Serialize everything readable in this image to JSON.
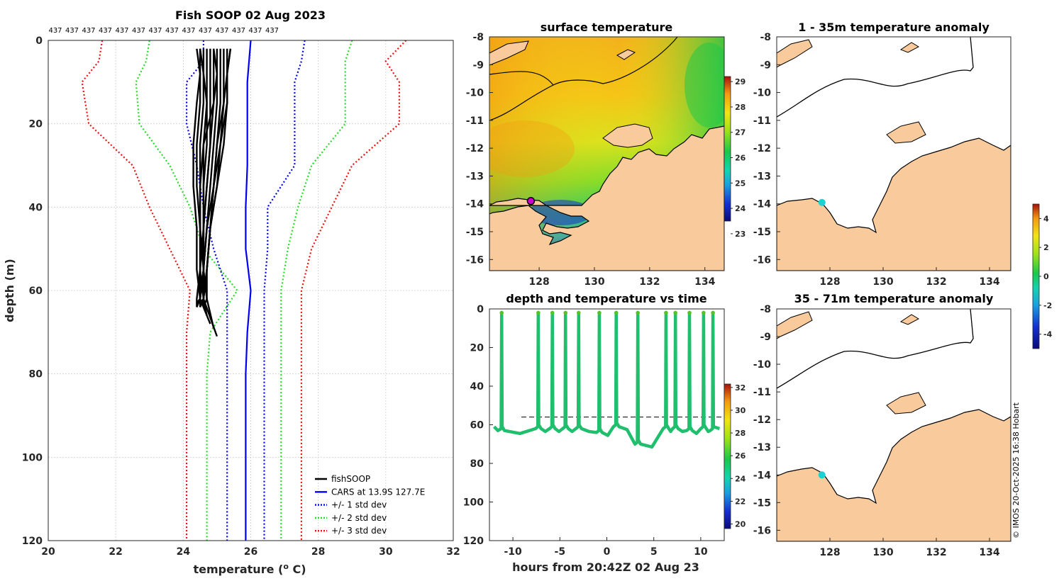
{
  "figure_title": "Fish SOOP 02 Aug 2023",
  "copyright": "© IMOS 20-Oct-2025 16:38 Hobart",
  "colors": {
    "fishsoop": "#000000",
    "cars": "#0000ee",
    "std1": "#0000ee",
    "std2": "#22dd22",
    "std3": "#ee1111",
    "land": "#f9cb9c",
    "trace": "#1fbf6e",
    "marker_cyan": "#19d3d3",
    "marker_magenta": "#cc00cc"
  },
  "chart_data": [
    {
      "type": "line",
      "name": "profile",
      "title": "Fish SOOP 02 Aug 2023",
      "top_labels": [
        "437",
        "437",
        "437",
        "437",
        "437",
        "437",
        "437",
        "437",
        "437",
        "437",
        "437",
        "437",
        "437",
        "437"
      ],
      "xlabel": "temperature",
      "xlabel_unit_sup": "o",
      "xlabel_unit_tail": " C)",
      "ylabel": "depth (m)",
      "xlim": [
        20,
        32
      ],
      "ylim": [
        0,
        120
      ],
      "xticks": [
        "20",
        "22",
        "24",
        "26",
        "28",
        "30",
        "32"
      ],
      "yticks": [
        "0",
        "20",
        "40",
        "60",
        "80",
        "100",
        "120"
      ],
      "legend": [
        {
          "label": "fishSOOP",
          "style": "solid",
          "color_key": "fishsoop"
        },
        {
          "label": "CARS at 13.9S 127.7E",
          "style": "solid",
          "color_key": "cars"
        },
        {
          "label": "+/- 1 std dev",
          "style": "dotted",
          "color_key": "std1"
        },
        {
          "label": "+/- 2 std dev",
          "style": "dotted",
          "color_key": "std2"
        },
        {
          "label": "+/- 3 std dev",
          "style": "dotted",
          "color_key": "std3"
        }
      ],
      "depths": [
        0,
        5,
        10,
        20,
        30,
        40,
        50,
        60,
        70,
        80,
        120
      ],
      "cars": [
        26.0,
        25.95,
        25.9,
        25.9,
        25.9,
        25.85,
        25.85,
        26.0,
        25.9,
        25.85,
        25.85
      ],
      "std1": {
        "lower": [
          24.6,
          24.6,
          24.1,
          24.1,
          24.4,
          24.6,
          24.9,
          25.3,
          25.3,
          25.3,
          25.3
        ],
        "upper": [
          27.6,
          27.5,
          27.3,
          27.3,
          27.3,
          26.5,
          26.5,
          26.4,
          26.4,
          26.4,
          26.4
        ]
      },
      "std2": {
        "lower": [
          23.0,
          22.9,
          22.6,
          22.7,
          23.6,
          24.2,
          24.6,
          25.6,
          24.8,
          24.7,
          24.7
        ],
        "upper": [
          29.0,
          28.8,
          28.8,
          28.8,
          27.8,
          27.4,
          27.1,
          26.9,
          26.9,
          26.9,
          26.9
        ]
      },
      "std3": {
        "lower": [
          21.6,
          21.5,
          21.0,
          21.2,
          22.5,
          23.0,
          23.6,
          24.2,
          24.1,
          24.1,
          24.1
        ],
        "upper": [
          30.6,
          30.0,
          30.4,
          30.4,
          29.0,
          28.4,
          27.8,
          27.5,
          27.5,
          27.5,
          27.5
        ]
      },
      "fishsoop_profiles": [
        {
          "t": [
            24.4,
            24.5,
            24.4,
            24.3,
            24.3,
            24.4,
            24.4,
            24.5,
            24.8
          ],
          "d": [
            2,
            8,
            15,
            25,
            35,
            45,
            55,
            62,
            68
          ]
        },
        {
          "t": [
            24.5,
            24.5,
            24.5,
            24.4,
            24.4,
            24.5,
            24.5,
            24.6,
            25.0
          ],
          "d": [
            2,
            8,
            15,
            25,
            35,
            45,
            55,
            62,
            71
          ]
        },
        {
          "t": [
            24.6,
            24.6,
            24.6,
            24.5,
            24.5,
            24.5,
            24.6,
            24.6,
            24.7
          ],
          "d": [
            2,
            8,
            15,
            25,
            35,
            45,
            55,
            62,
            66
          ]
        },
        {
          "t": [
            24.7,
            24.7,
            24.7,
            24.6,
            24.6,
            24.6,
            24.6,
            24.7,
            24.9
          ],
          "d": [
            2,
            8,
            15,
            25,
            35,
            45,
            55,
            62,
            69
          ]
        },
        {
          "t": [
            24.8,
            24.8,
            24.8,
            24.8,
            24.7,
            24.6,
            24.6,
            24.5,
            24.5
          ],
          "d": [
            2,
            8,
            15,
            25,
            35,
            45,
            55,
            62,
            64
          ]
        },
        {
          "t": [
            24.9,
            24.9,
            24.9,
            24.8,
            24.7,
            24.6,
            24.5,
            24.5,
            24.4
          ],
          "d": [
            2,
            8,
            15,
            25,
            35,
            45,
            55,
            62,
            64
          ]
        },
        {
          "t": [
            25.0,
            25.0,
            25.0,
            24.9,
            24.8,
            24.7,
            24.6,
            24.5,
            24.5
          ],
          "d": [
            2,
            8,
            15,
            25,
            35,
            45,
            55,
            62,
            63
          ]
        },
        {
          "t": [
            25.1,
            25.1,
            25.1,
            25.0,
            24.9,
            24.7,
            24.6,
            24.5,
            24.4
          ],
          "d": [
            2,
            8,
            15,
            25,
            35,
            45,
            55,
            62,
            63
          ]
        },
        {
          "t": [
            25.2,
            25.2,
            25.2,
            25.1,
            25.0,
            24.8,
            24.7,
            24.6,
            24.5
          ],
          "d": [
            2,
            8,
            15,
            25,
            35,
            45,
            55,
            62,
            64
          ]
        },
        {
          "t": [
            25.3,
            25.3,
            25.3,
            25.1,
            24.9,
            24.8,
            24.7,
            24.6,
            24.5
          ],
          "d": [
            2,
            8,
            15,
            25,
            35,
            45,
            55,
            62,
            63
          ]
        },
        {
          "t": [
            25.4,
            25.3,
            25.3,
            25.2,
            25.0,
            24.8,
            24.7,
            24.6,
            24.6
          ],
          "d": [
            2,
            8,
            15,
            25,
            35,
            45,
            55,
            62,
            64
          ]
        },
        {
          "t": [
            25.4,
            25.3,
            25.2,
            25.0,
            24.9,
            24.8,
            24.7,
            24.7,
            24.6
          ],
          "d": [
            2,
            8,
            15,
            25,
            35,
            45,
            55,
            62,
            64
          ]
        },
        {
          "t": [
            24.5,
            24.6,
            24.7,
            24.7,
            24.6,
            24.6,
            24.6,
            24.6,
            24.6
          ],
          "d": [
            2,
            8,
            15,
            25,
            35,
            45,
            55,
            62,
            64
          ]
        },
        {
          "t": [
            24.9,
            25.0,
            24.9,
            24.6,
            24.5,
            24.5,
            24.5,
            24.4,
            24.4
          ],
          "d": [
            2,
            8,
            15,
            25,
            35,
            45,
            55,
            62,
            64
          ]
        }
      ]
    },
    {
      "type": "heatmap",
      "name": "surface_temperature",
      "title": "surface temperature",
      "xlim": [
        126.2,
        134.7
      ],
      "ylim": [
        -16.4,
        -8.0
      ],
      "xticks": [
        "128",
        "130",
        "132",
        "134"
      ],
      "yticks": [
        "-8",
        "-9",
        "-10",
        "-11",
        "-12",
        "-13",
        "-14",
        "-15",
        "-16"
      ],
      "colorbar_ticks": [
        "23",
        "24",
        "25",
        "26",
        "27",
        "28",
        "29"
      ],
      "colorbar_range": [
        23.5,
        29.2
      ],
      "marker": {
        "lon": 127.7,
        "lat": -13.9
      }
    },
    {
      "type": "scatter",
      "name": "depth_vs_time",
      "title": "depth and temperature vs time",
      "xlabel": "hours from 20:42Z 02 Aug 23",
      "xlim": [
        -12.5,
        12.5
      ],
      "ylim": [
        0,
        120
      ],
      "xticks": [
        "-10",
        "-5",
        "0",
        "5",
        "10"
      ],
      "yticks": [
        "0",
        "20",
        "40",
        "60",
        "80",
        "100",
        "120"
      ],
      "colorbar_ticks": [
        "20",
        "22",
        "24",
        "26",
        "28",
        "30",
        "32"
      ],
      "colorbar_range": [
        19.6,
        32.3
      ],
      "dashed_depth": 56,
      "cast_times": [
        -11.2,
        -7.3,
        -5.8,
        -4.4,
        -3.0,
        -0.8,
        1.0,
        3.3,
        6.3,
        7.3,
        8.8,
        10.3,
        11.3
      ],
      "bottom_depths": [
        63,
        62,
        62,
        62,
        62,
        64,
        61,
        70,
        62,
        62,
        63,
        62,
        63
      ]
    },
    {
      "type": "heatmap",
      "name": "anomaly_1_35",
      "title": "1 - 35m temperature anomaly",
      "xlim": [
        126.0,
        134.8
      ],
      "ylim": [
        -16.4,
        -8.0
      ],
      "xticks": [
        "128",
        "130",
        "132",
        "134"
      ],
      "yticks": [
        "-8",
        "-9",
        "-10",
        "-11",
        "-12",
        "-13",
        "-14",
        "-15",
        "-16"
      ],
      "marker": {
        "lon": 127.7,
        "lat": -13.95
      }
    },
    {
      "type": "heatmap",
      "name": "anomaly_35_71",
      "title": "35 - 71m temperature anomaly",
      "xlim": [
        126.0,
        134.8
      ],
      "ylim": [
        -16.4,
        -8.0
      ],
      "xticks": [
        "128",
        "130",
        "132",
        "134"
      ],
      "yticks": [
        "-8",
        "-9",
        "-10",
        "-11",
        "-12",
        "-13",
        "-14",
        "-15",
        "-16"
      ],
      "marker": {
        "lon": 127.7,
        "lat": -14.0
      },
      "colorbar_ticks": [
        "4",
        "2",
        "0",
        "-2",
        "-4"
      ],
      "colorbar_range": [
        -5,
        5
      ]
    }
  ]
}
